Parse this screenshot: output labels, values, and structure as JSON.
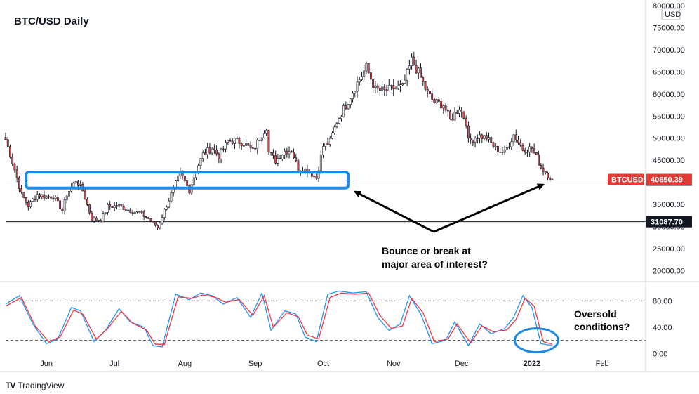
{
  "chart_data": [
    {
      "type": "candlestick",
      "title": "BTC/USD Daily",
      "symbol_tag": "BTCUSD",
      "currency_label": "USD",
      "last_price": 40650.39,
      "last_price_label": "40650.39",
      "y_ticks": [
        "80000.00",
        "75000.00",
        "70000.00",
        "65000.00",
        "60000.00",
        "55000.00",
        "50000.00",
        "45000.00",
        "40000.00",
        "35000.00",
        "30000.00",
        "25000.00",
        "20000.00"
      ],
      "ylim": [
        18000,
        80000
      ],
      "x_ticks": [
        "Jun",
        "Jul",
        "Aug",
        "Sep",
        "Oct",
        "Nov",
        "Dec",
        "2022",
        "Feb"
      ],
      "date_range": [
        "2021-05-14",
        "2022-01-10"
      ],
      "horizontal_levels": [
        {
          "value": 40500.0,
          "label": "40500.00"
        },
        {
          "value": 31087.7,
          "label": "31087.70"
        }
      ],
      "close_path": [
        [
          "2021-05-14",
          49700
        ],
        [
          "2021-05-18",
          42900
        ],
        [
          "2021-05-21",
          37300
        ],
        [
          "2021-05-24",
          34700
        ],
        [
          "2021-05-28",
          37300
        ],
        [
          "2021-06-01",
          36700
        ],
        [
          "2021-06-04",
          36900
        ],
        [
          "2021-06-08",
          33600
        ],
        [
          "2021-06-10",
          37300
        ],
        [
          "2021-06-14",
          40500
        ],
        [
          "2021-06-17",
          38100
        ],
        [
          "2021-06-21",
          31700
        ],
        [
          "2021-06-25",
          31500
        ],
        [
          "2021-06-28",
          34500
        ],
        [
          "2021-07-03",
          34700
        ],
        [
          "2021-07-07",
          33800
        ],
        [
          "2021-07-12",
          33100
        ],
        [
          "2021-07-16",
          31800
        ],
        [
          "2021-07-20",
          29800
        ],
        [
          "2021-07-23",
          33600
        ],
        [
          "2021-07-26",
          37300
        ],
        [
          "2021-07-30",
          42000
        ],
        [
          "2021-08-03",
          38200
        ],
        [
          "2021-08-06",
          42800
        ],
        [
          "2021-08-09",
          46300
        ],
        [
          "2021-08-13",
          47800
        ],
        [
          "2021-08-16",
          45900
        ],
        [
          "2021-08-20",
          49300
        ],
        [
          "2021-08-23",
          49500
        ],
        [
          "2021-08-27",
          48900
        ],
        [
          "2021-08-31",
          47100
        ],
        [
          "2021-09-03",
          50000
        ],
        [
          "2021-09-06",
          52700
        ],
        [
          "2021-09-07",
          46800
        ],
        [
          "2021-09-10",
          44900
        ],
        [
          "2021-09-14",
          47100
        ],
        [
          "2021-09-17",
          47300
        ],
        [
          "2021-09-20",
          43000
        ],
        [
          "2021-09-24",
          42800
        ],
        [
          "2021-09-28",
          41000
        ],
        [
          "2021-10-01",
          48200
        ],
        [
          "2021-10-04",
          49200
        ],
        [
          "2021-10-07",
          53800
        ],
        [
          "2021-10-11",
          57500
        ],
        [
          "2021-10-15",
          61600
        ],
        [
          "2021-10-20",
          66000
        ],
        [
          "2021-10-24",
          61000
        ],
        [
          "2021-10-28",
          60600
        ],
        [
          "2021-11-01",
          61300
        ],
        [
          "2021-11-05",
          61500
        ],
        [
          "2021-11-09",
          67600
        ],
        [
          "2021-11-12",
          64800
        ],
        [
          "2021-11-16",
          60100
        ],
        [
          "2021-11-19",
          58100
        ],
        [
          "2021-11-23",
          57600
        ],
        [
          "2021-11-26",
          54000
        ],
        [
          "2021-11-30",
          57000
        ],
        [
          "2021-12-03",
          53700
        ],
        [
          "2021-12-04",
          49200
        ],
        [
          "2021-12-08",
          50600
        ],
        [
          "2021-12-12",
          50100
        ],
        [
          "2021-12-16",
          47600
        ],
        [
          "2021-12-20",
          46700
        ],
        [
          "2021-12-24",
          50800
        ],
        [
          "2021-12-28",
          47500
        ],
        [
          "2022-01-01",
          47700
        ],
        [
          "2022-01-05",
          43400
        ],
        [
          "2022-01-08",
          41700
        ],
        [
          "2022-01-10",
          40650
        ]
      ],
      "annotations": [
        "Bounce or break at",
        "major area of interest?"
      ]
    },
    {
      "type": "line",
      "name": "stochastic oscillator",
      "y_ticks": [
        "80.00",
        "40.00",
        "0.00"
      ],
      "ylim": [
        -5,
        105
      ],
      "dashed_levels": [
        80,
        20
      ],
      "series": [
        {
          "color": "#2196f3",
          "values": [
            [
              "2021-05-14",
              75
            ],
            [
              "2021-05-20",
              88
            ],
            [
              "2021-05-26",
              45
            ],
            [
              "2021-06-01",
              15
            ],
            [
              "2021-06-06",
              22
            ],
            [
              "2021-06-12",
              70
            ],
            [
              "2021-06-16",
              65
            ],
            [
              "2021-06-22",
              18
            ],
            [
              "2021-06-27",
              35
            ],
            [
              "2021-07-03",
              68
            ],
            [
              "2021-07-08",
              48
            ],
            [
              "2021-07-14",
              40
            ],
            [
              "2021-07-18",
              12
            ],
            [
              "2021-07-22",
              10
            ],
            [
              "2021-07-28",
              90
            ],
            [
              "2021-08-03",
              82
            ],
            [
              "2021-08-08",
              92
            ],
            [
              "2021-08-13",
              88
            ],
            [
              "2021-08-18",
              75
            ],
            [
              "2021-08-24",
              85
            ],
            [
              "2021-08-30",
              55
            ],
            [
              "2021-09-04",
              92
            ],
            [
              "2021-09-08",
              35
            ],
            [
              "2021-09-14",
              65
            ],
            [
              "2021-09-19",
              60
            ],
            [
              "2021-09-23",
              25
            ],
            [
              "2021-09-28",
              18
            ],
            [
              "2021-10-03",
              90
            ],
            [
              "2021-10-08",
              95
            ],
            [
              "2021-10-14",
              92
            ],
            [
              "2021-10-20",
              94
            ],
            [
              "2021-10-25",
              55
            ],
            [
              "2021-10-30",
              35
            ],
            [
              "2021-11-04",
              45
            ],
            [
              "2021-11-08",
              88
            ],
            [
              "2021-11-13",
              60
            ],
            [
              "2021-11-18",
              15
            ],
            [
              "2021-11-24",
              20
            ],
            [
              "2021-11-28",
              48
            ],
            [
              "2021-12-04",
              12
            ],
            [
              "2021-12-09",
              45
            ],
            [
              "2021-12-14",
              30
            ],
            [
              "2021-12-20",
              38
            ],
            [
              "2021-12-24",
              55
            ],
            [
              "2021-12-28",
              88
            ],
            [
              "2022-01-01",
              70
            ],
            [
              "2022-01-05",
              15
            ],
            [
              "2022-01-10",
              12
            ]
          ]
        },
        {
          "color": "#f23645",
          "values": [
            [
              "2021-05-14",
              72
            ],
            [
              "2021-05-21",
              85
            ],
            [
              "2021-05-27",
              42
            ],
            [
              "2021-06-02",
              18
            ],
            [
              "2021-06-07",
              25
            ],
            [
              "2021-06-13",
              66
            ],
            [
              "2021-06-17",
              60
            ],
            [
              "2021-06-23",
              22
            ],
            [
              "2021-06-28",
              38
            ],
            [
              "2021-07-04",
              64
            ],
            [
              "2021-07-09",
              46
            ],
            [
              "2021-07-15",
              36
            ],
            [
              "2021-07-19",
              14
            ],
            [
              "2021-07-23",
              14
            ],
            [
              "2021-07-29",
              86
            ],
            [
              "2021-08-04",
              84
            ],
            [
              "2021-08-09",
              89
            ],
            [
              "2021-08-14",
              86
            ],
            [
              "2021-08-19",
              78
            ],
            [
              "2021-08-25",
              82
            ],
            [
              "2021-08-31",
              58
            ],
            [
              "2021-09-05",
              88
            ],
            [
              "2021-09-09",
              40
            ],
            [
              "2021-09-15",
              62
            ],
            [
              "2021-09-20",
              56
            ],
            [
              "2021-09-24",
              28
            ],
            [
              "2021-09-29",
              22
            ],
            [
              "2021-10-04",
              85
            ],
            [
              "2021-10-09",
              92
            ],
            [
              "2021-10-15",
              90
            ],
            [
              "2021-10-21",
              92
            ],
            [
              "2021-10-26",
              58
            ],
            [
              "2021-10-31",
              38
            ],
            [
              "2021-11-05",
              42
            ],
            [
              "2021-11-09",
              84
            ],
            [
              "2021-11-14",
              62
            ],
            [
              "2021-11-19",
              18
            ],
            [
              "2021-11-25",
              22
            ],
            [
              "2021-11-29",
              45
            ],
            [
              "2021-12-05",
              16
            ],
            [
              "2021-12-10",
              42
            ],
            [
              "2021-12-15",
              33
            ],
            [
              "2021-12-21",
              36
            ],
            [
              "2021-12-25",
              52
            ],
            [
              "2021-12-29",
              84
            ],
            [
              "2022-01-02",
              72
            ],
            [
              "2022-01-06",
              18
            ],
            [
              "2022-01-10",
              14
            ]
          ]
        }
      ],
      "annotations": [
        "Oversold",
        "conditions?"
      ]
    }
  ],
  "footer": {
    "brand": "TradingView",
    "logo": "TV"
  },
  "colors": {
    "up": "#131722",
    "down": "#e05050",
    "box": "#1e88e5",
    "tag": "#e53935",
    "tag_dark": "#131722"
  }
}
